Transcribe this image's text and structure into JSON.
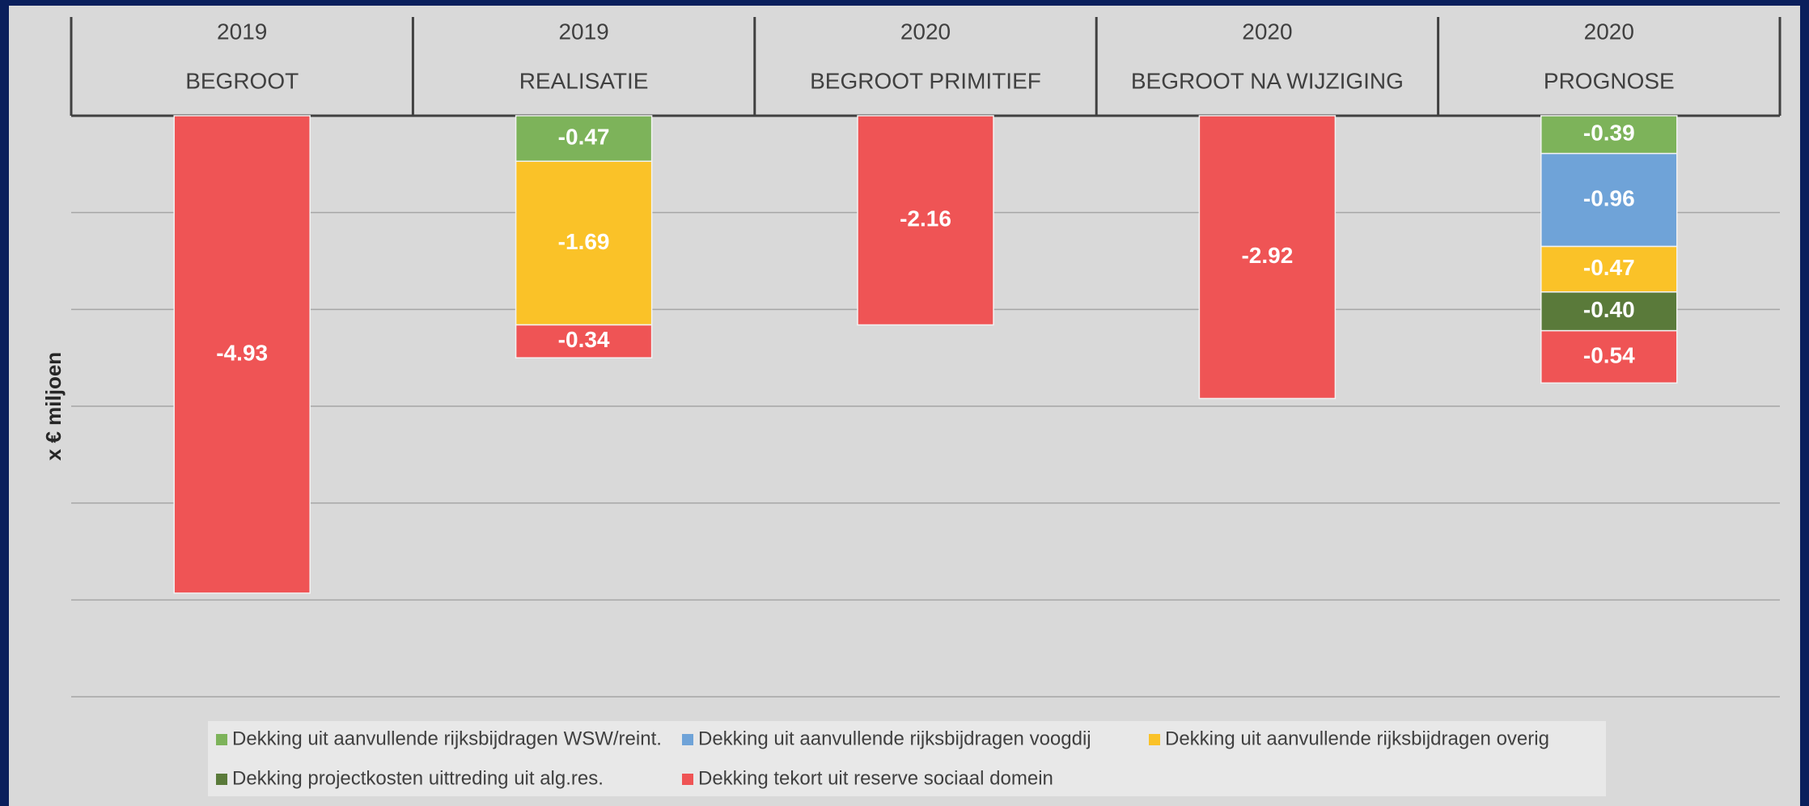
{
  "chart_data": {
    "type": "stacked_bar",
    "ylabel": "x € miljoen",
    "categories": [
      [
        "2019",
        "BEGROOT"
      ],
      [
        "2019",
        "REALISATIE"
      ],
      [
        "2020",
        "BEGROOT PRIMITIEF"
      ],
      [
        "2020",
        "BEGROOT NA WIJZIGING"
      ],
      [
        "2020",
        "PROGNOSE"
      ]
    ],
    "series": [
      {
        "name": "Dekking uit aanvullende rijksbijdragen WSW/reint.",
        "color": "#7db35a",
        "values": [
          null,
          -0.47,
          null,
          null,
          -0.39
        ],
        "value_labels": [
          null,
          "-0.47",
          null,
          null,
          "-0.39"
        ]
      },
      {
        "name": "Dekking uit aanvullende rijksbijdragen voogdij",
        "color": "#6fa3d8",
        "values": [
          null,
          null,
          null,
          null,
          -0.96
        ],
        "value_labels": [
          null,
          null,
          null,
          null,
          "-0.96"
        ]
      },
      {
        "name": "Dekking uit aanvullende rijksbijdragen overig",
        "color": "#fac228",
        "values": [
          null,
          -1.69,
          null,
          null,
          -0.47
        ],
        "value_labels": [
          null,
          "-1.69",
          null,
          null,
          "-0.47"
        ]
      },
      {
        "name": "Dekking projectkosten uittreding uit alg.res.",
        "color": "#5a7a3a",
        "values": [
          null,
          null,
          null,
          null,
          -0.4
        ],
        "value_labels": [
          null,
          null,
          null,
          null,
          "-0.40"
        ]
      },
      {
        "name": "Dekking tekort uit reserve sociaal domein",
        "color": "#ef5455",
        "values": [
          -4.93,
          -0.34,
          -2.16,
          -2.92,
          -0.54
        ],
        "value_labels": [
          "-4.93",
          "-0.34",
          "-2.16",
          "-2.92",
          "-0.54"
        ]
      }
    ],
    "ylim": [
      -6,
      0
    ],
    "yticks": [
      0,
      -1,
      -2,
      -3,
      -4,
      -5,
      -6
    ],
    "grid": true,
    "legend": "bottom"
  }
}
